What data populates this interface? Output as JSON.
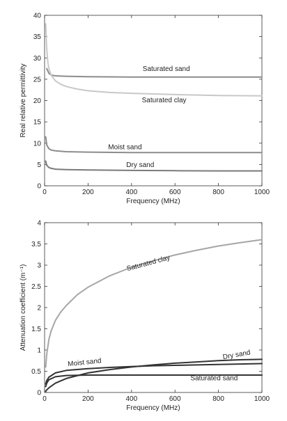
{
  "chart_data": [
    {
      "type": "line",
      "title": "",
      "xlabel": "Frequency (MHz)",
      "ylabel": "Real relative permittivity",
      "xlim": [
        0,
        1000
      ],
      "ylim": [
        0,
        40
      ],
      "xticks": [
        0,
        200,
        400,
        600,
        800,
        1000
      ],
      "yticks": [
        0,
        5,
        10,
        15,
        20,
        25,
        30,
        35,
        40
      ],
      "grid": false,
      "series": [
        {
          "name": "Saturated sand",
          "color": "#8c8c8c",
          "x": [
            10,
            20,
            30,
            50,
            100,
            200,
            400,
            600,
            800,
            1000
          ],
          "y": [
            27.5,
            26.4,
            26.0,
            25.8,
            25.7,
            25.6,
            25.5,
            25.5,
            25.5,
            25.5
          ]
        },
        {
          "name": "Saturated clay",
          "color": "#c8c8c8",
          "x": [
            5,
            10,
            15,
            20,
            30,
            50,
            75,
            100,
            150,
            200,
            300,
            400,
            600,
            800,
            1000
          ],
          "y": [
            38,
            32,
            29,
            27.5,
            26,
            24.6,
            23.8,
            23.3,
            22.7,
            22.3,
            21.9,
            21.7,
            21.4,
            21.2,
            21.1
          ]
        },
        {
          "name": "Moist sand",
          "color": "#8c8c8c",
          "x": [
            5,
            10,
            20,
            30,
            50,
            100,
            200,
            400,
            600,
            800,
            1000
          ],
          "y": [
            11.5,
            9.6,
            8.7,
            8.4,
            8.2,
            8.0,
            7.9,
            7.8,
            7.8,
            7.8,
            7.8
          ]
        },
        {
          "name": "Dry sand",
          "color": "#7a7a7a",
          "x": [
            5,
            10,
            20,
            30,
            50,
            100,
            200,
            400,
            600,
            800,
            1000
          ],
          "y": [
            5.8,
            4.8,
            4.3,
            4.1,
            3.9,
            3.8,
            3.7,
            3.6,
            3.55,
            3.5,
            3.5
          ]
        }
      ],
      "labels": [
        {
          "text": "Saturated sand",
          "x": 560,
          "y": 26.9
        },
        {
          "text": "Saturated clay",
          "x": 550,
          "y": 19.6
        },
        {
          "text": "Moist sand",
          "x": 370,
          "y": 8.6
        },
        {
          "text": "Dry sand",
          "x": 440,
          "y": 4.4
        }
      ]
    },
    {
      "type": "line",
      "title": "",
      "xlabel": "Frequency (MHz)",
      "ylabel": "Attenuation coefficient (m⁻¹)",
      "xlim": [
        0,
        1000
      ],
      "ylim": [
        0,
        4
      ],
      "xticks": [
        0,
        200,
        400,
        600,
        800,
        1000
      ],
      "yticks": [
        0,
        0.5,
        1,
        1.5,
        2,
        2.5,
        3,
        3.5,
        4
      ],
      "grid": false,
      "series": [
        {
          "name": "Saturated clay",
          "color": "#a6a6a6",
          "x": [
            5,
            10,
            20,
            30,
            50,
            75,
            100,
            150,
            200,
            300,
            400,
            500,
            600,
            700,
            800,
            900,
            1000
          ],
          "y": [
            0.6,
            0.9,
            1.25,
            1.45,
            1.7,
            1.9,
            2.05,
            2.3,
            2.48,
            2.75,
            2.95,
            3.1,
            3.24,
            3.35,
            3.45,
            3.53,
            3.6
          ]
        },
        {
          "name": "Dry sand",
          "color": "#333333",
          "x": [
            5,
            10,
            20,
            50,
            100,
            200,
            300,
            400,
            500,
            600,
            700,
            800,
            900,
            1000
          ],
          "y": [
            0.03,
            0.06,
            0.11,
            0.22,
            0.33,
            0.46,
            0.54,
            0.6,
            0.65,
            0.69,
            0.72,
            0.75,
            0.77,
            0.78
          ]
        },
        {
          "name": "Moist sand",
          "color": "#333333",
          "x": [
            5,
            10,
            20,
            50,
            100,
            200,
            300,
            400,
            500,
            600,
            700,
            800,
            900,
            1000
          ],
          "y": [
            0.2,
            0.28,
            0.36,
            0.46,
            0.52,
            0.56,
            0.59,
            0.61,
            0.63,
            0.64,
            0.65,
            0.66,
            0.67,
            0.68
          ]
        },
        {
          "name": "Saturated sand",
          "color": "#333333",
          "x": [
            5,
            10,
            20,
            50,
            100,
            200,
            400,
            600,
            800,
            1000
          ],
          "y": [
            0.14,
            0.22,
            0.3,
            0.37,
            0.4,
            0.41,
            0.41,
            0.41,
            0.41,
            0.41
          ]
        }
      ],
      "labels": [
        {
          "text": "Saturated clay",
          "x": 480,
          "y": 3.0,
          "rotate": -15
        },
        {
          "text": "Dry sand",
          "x": 885,
          "y": 0.84,
          "rotate": -10
        },
        {
          "text": "Moist sand",
          "x": 185,
          "y": 0.66,
          "rotate": -6
        },
        {
          "text": "Saturated sand",
          "x": 780,
          "y": 0.29
        }
      ]
    }
  ]
}
